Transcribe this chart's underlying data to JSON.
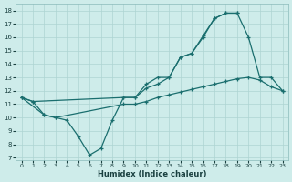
{
  "xlabel": "Humidex (Indice chaleur)",
  "bg_color": "#ceecea",
  "grid_color": "#aed4d2",
  "line_color": "#1a6e6e",
  "xlim": [
    -0.5,
    23.5
  ],
  "ylim": [
    6.8,
    18.5
  ],
  "xticks": [
    0,
    1,
    2,
    3,
    4,
    5,
    6,
    7,
    8,
    9,
    10,
    11,
    12,
    13,
    14,
    15,
    16,
    17,
    18,
    19,
    20,
    21,
    22,
    23
  ],
  "yticks": [
    7,
    8,
    9,
    10,
    11,
    12,
    13,
    14,
    15,
    16,
    17,
    18
  ],
  "line1_x": [
    0,
    2,
    3,
    4,
    5,
    6,
    7,
    8,
    9,
    10,
    11,
    12,
    13,
    14,
    15,
    16,
    17,
    18,
    19
  ],
  "line1_y": [
    11.5,
    10.2,
    10.0,
    9.8,
    8.6,
    7.2,
    7.7,
    9.8,
    11.5,
    11.5,
    12.5,
    13.0,
    13.0,
    14.5,
    14.8,
    16.1,
    17.4,
    17.8,
    17.8
  ],
  "line2_x": [
    0,
    1,
    9,
    10,
    11,
    12,
    13,
    14,
    15,
    16,
    17,
    18,
    19,
    20,
    21,
    22,
    23
  ],
  "line2_y": [
    11.5,
    11.2,
    11.5,
    11.5,
    12.2,
    12.5,
    13.0,
    14.5,
    14.8,
    16.0,
    17.4,
    17.8,
    17.8,
    16.0,
    13.0,
    13.0,
    12.0
  ],
  "line3_x": [
    0,
    1,
    2,
    3,
    9,
    10,
    11,
    12,
    13,
    14,
    15,
    16,
    17,
    18,
    19,
    20,
    21,
    22,
    23
  ],
  "line3_y": [
    11.5,
    11.2,
    10.2,
    10.0,
    11.0,
    11.0,
    11.2,
    11.5,
    11.7,
    11.9,
    12.1,
    12.3,
    12.5,
    12.7,
    12.9,
    13.0,
    12.8,
    12.3,
    12.0
  ]
}
